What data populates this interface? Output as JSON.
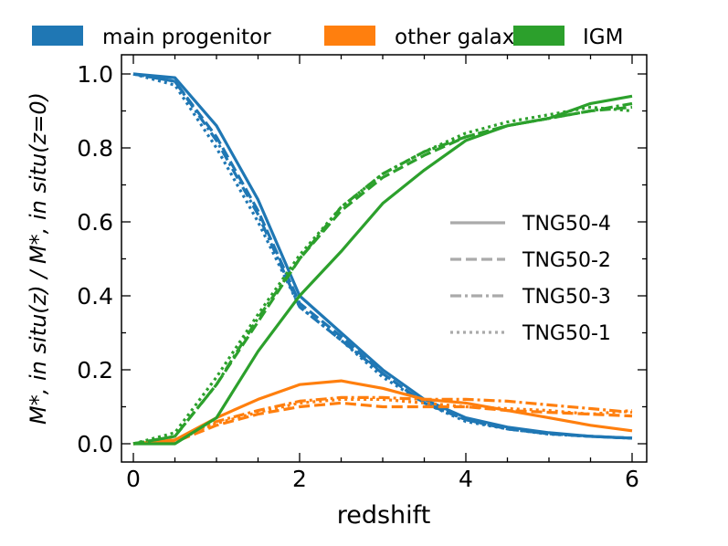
{
  "chart_data": {
    "type": "line",
    "title": "",
    "xlabel": "redshift",
    "ylabel": "M*, in situ(z) / M*, in situ(z=0)",
    "xlim": [
      -0.15,
      6.3
    ],
    "ylim": [
      -0.05,
      1.05
    ],
    "xticks": [
      "0",
      "2",
      "4",
      "6"
    ],
    "yticks": [
      "0.0",
      "0.2",
      "0.4",
      "0.6",
      "0.8",
      "1.0"
    ],
    "x": [
      0,
      0.5,
      1,
      1.5,
      2,
      2.5,
      3,
      3.5,
      4,
      4.5,
      5,
      5.5,
      6
    ],
    "legend_components": [
      {
        "name": "main progenitor",
        "color": "#1f77b4"
      },
      {
        "name": "other galaxies",
        "color": "#ff7f0e"
      },
      {
        "name": "IGM",
        "color": "#2ca02c"
      }
    ],
    "legend_runs": [
      {
        "name": "TNG50-4",
        "style": "solid"
      },
      {
        "name": "TNG50-2",
        "style": "dashed"
      },
      {
        "name": "TNG50-3",
        "style": "dashdot"
      },
      {
        "name": "TNG50-1",
        "style": "dotted"
      }
    ],
    "legend_runs_color": "#aaaaaa",
    "series": [
      {
        "component": "main progenitor",
        "run": "TNG50-4",
        "values": [
          1.0,
          0.99,
          0.86,
          0.66,
          0.4,
          0.3,
          0.2,
          0.12,
          0.07,
          0.045,
          0.03,
          0.02,
          0.015
        ]
      },
      {
        "component": "main progenitor",
        "run": "TNG50-2",
        "values": [
          1.0,
          0.98,
          0.83,
          0.63,
          0.38,
          0.29,
          0.19,
          0.11,
          0.065,
          0.04,
          0.027,
          0.02,
          0.015
        ]
      },
      {
        "component": "main progenitor",
        "run": "TNG50-3",
        "values": [
          1.0,
          0.98,
          0.82,
          0.62,
          0.37,
          0.28,
          0.19,
          0.11,
          0.065,
          0.04,
          0.027,
          0.02,
          0.015
        ]
      },
      {
        "component": "main progenitor",
        "run": "TNG50-1",
        "values": [
          1.0,
          0.97,
          0.8,
          0.6,
          0.37,
          0.28,
          0.18,
          0.11,
          0.06,
          0.04,
          0.026,
          0.02,
          0.015
        ]
      },
      {
        "component": "other galaxies",
        "run": "TNG50-4",
        "values": [
          0,
          0.01,
          0.07,
          0.12,
          0.16,
          0.17,
          0.15,
          0.12,
          0.11,
          0.09,
          0.07,
          0.05,
          0.035
        ]
      },
      {
        "component": "other galaxies",
        "run": "TNG50-2",
        "values": [
          0,
          0.005,
          0.05,
          0.08,
          0.1,
          0.11,
          0.1,
          0.1,
          0.1,
          0.09,
          0.085,
          0.08,
          0.075
        ]
      },
      {
        "component": "other galaxies",
        "run": "TNG50-3",
        "values": [
          0,
          0.01,
          0.06,
          0.09,
          0.115,
          0.125,
          0.125,
          0.12,
          0.12,
          0.115,
          0.105,
          0.095,
          0.085
        ]
      },
      {
        "component": "other galaxies",
        "run": "TNG50-1",
        "values": [
          0,
          0.008,
          0.055,
          0.085,
          0.11,
          0.12,
          0.12,
          0.11,
          0.1,
          0.095,
          0.09,
          0.08,
          0.09
        ]
      },
      {
        "component": "IGM",
        "run": "TNG50-4",
        "values": [
          0,
          0.0,
          0.07,
          0.25,
          0.4,
          0.52,
          0.65,
          0.74,
          0.82,
          0.86,
          0.88,
          0.92,
          0.94
        ]
      },
      {
        "component": "IGM",
        "run": "TNG50-2",
        "values": [
          0,
          0.02,
          0.16,
          0.33,
          0.5,
          0.63,
          0.72,
          0.78,
          0.83,
          0.86,
          0.88,
          0.9,
          0.91
        ]
      },
      {
        "component": "IGM",
        "run": "TNG50-3",
        "values": [
          0,
          0.02,
          0.16,
          0.34,
          0.5,
          0.64,
          0.73,
          0.79,
          0.83,
          0.86,
          0.88,
          0.9,
          0.92
        ]
      },
      {
        "component": "IGM",
        "run": "TNG50-1",
        "values": [
          0,
          0.03,
          0.18,
          0.35,
          0.51,
          0.64,
          0.73,
          0.79,
          0.84,
          0.87,
          0.89,
          0.91,
          0.9
        ]
      }
    ]
  }
}
